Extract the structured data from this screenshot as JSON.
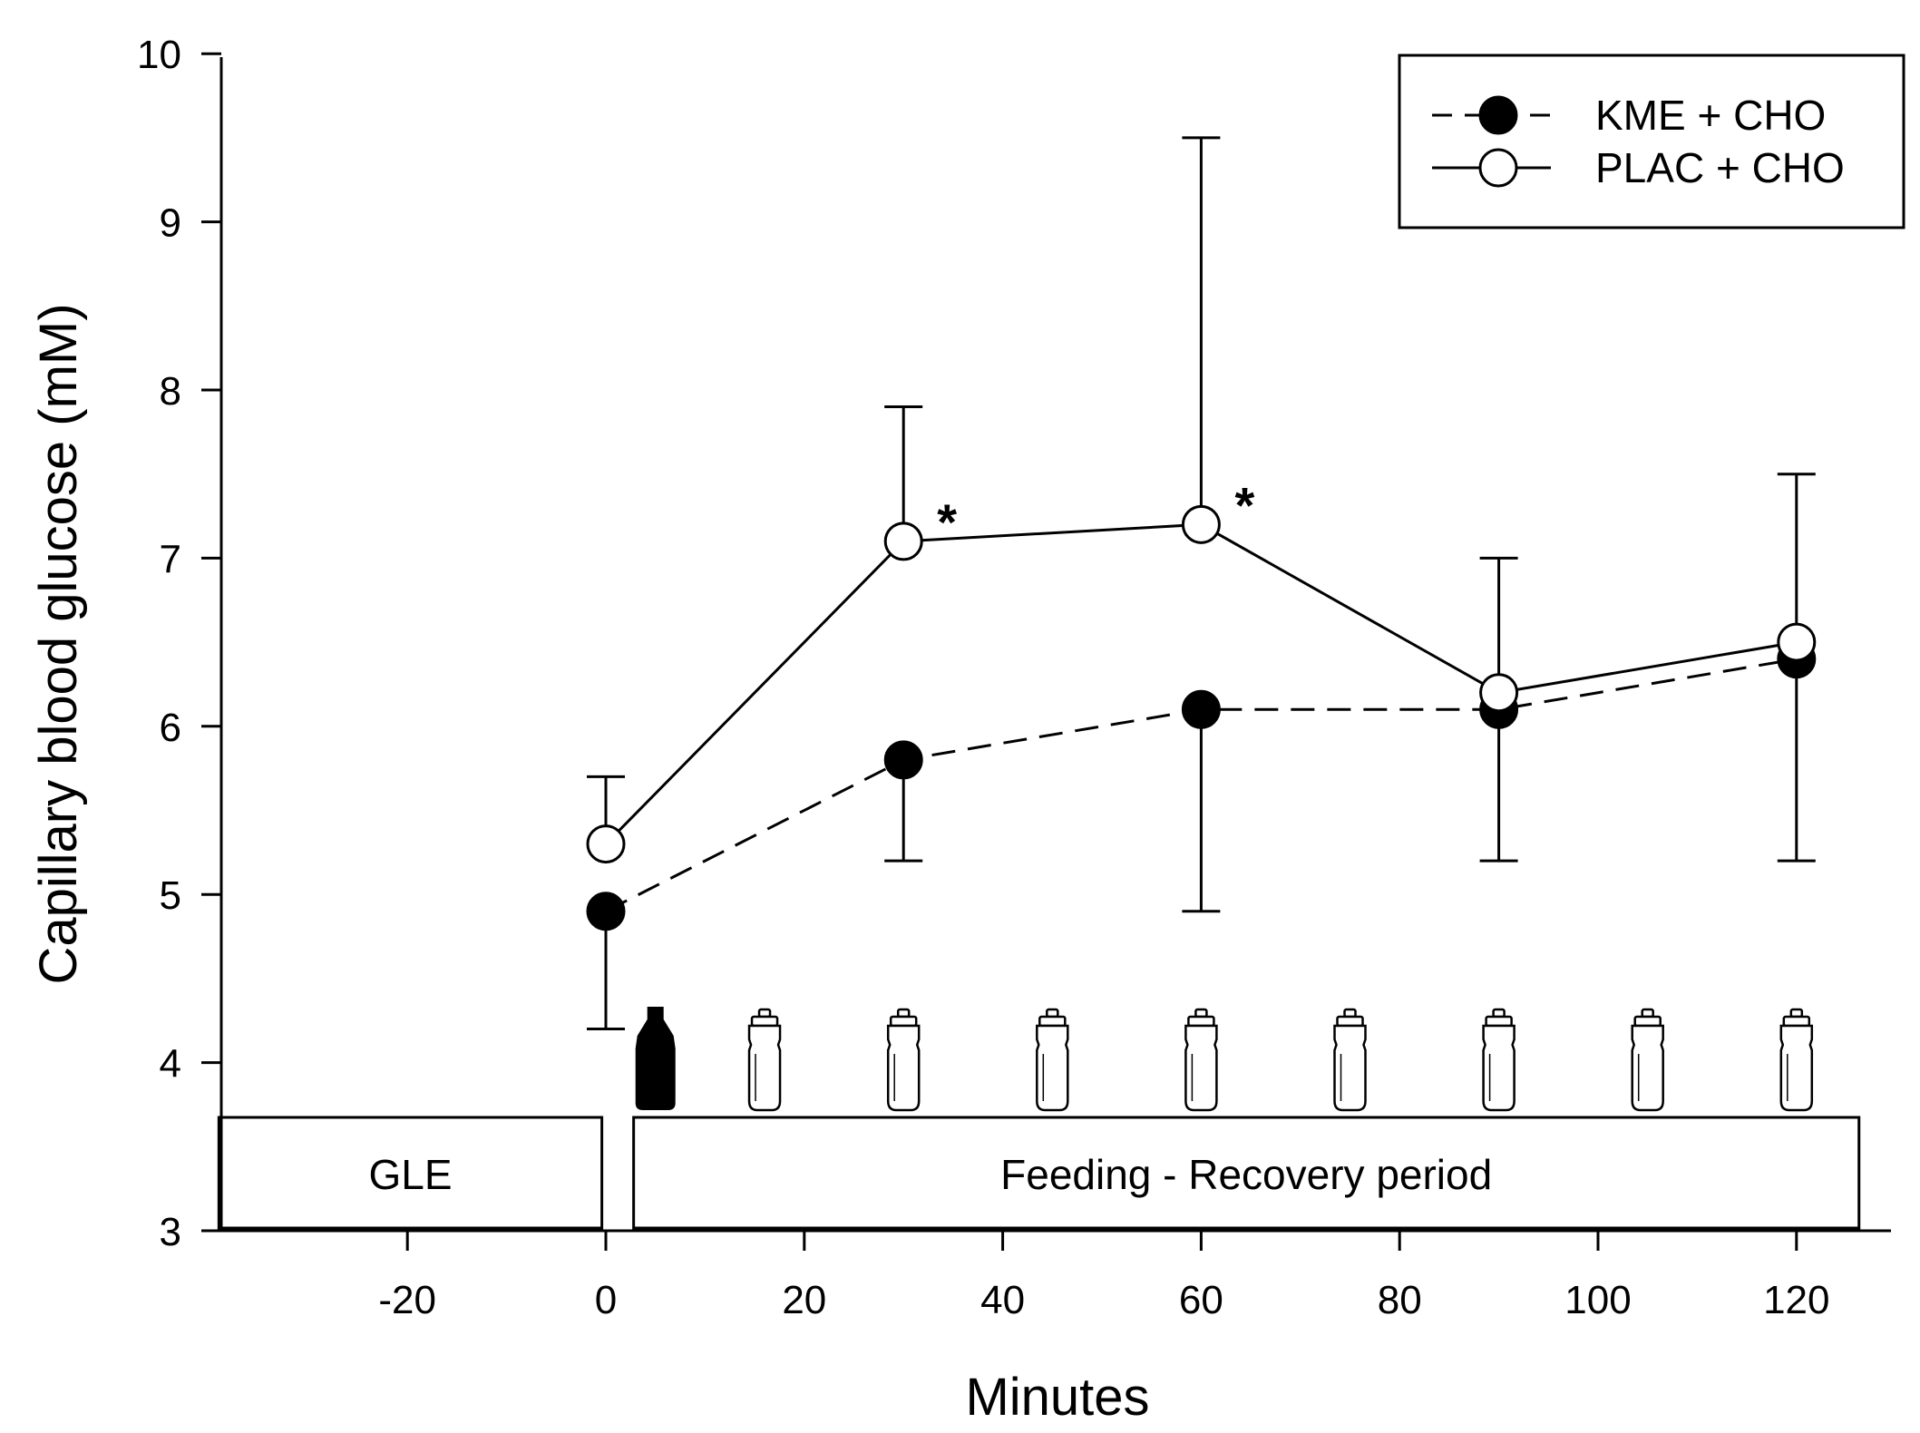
{
  "chart_data": {
    "type": "line",
    "xlabel": "Minutes",
    "ylabel": "Capillary blood glucose (mM)",
    "xlim": [
      -40,
      130
    ],
    "ylim": [
      3,
      10
    ],
    "xticks": [
      -20,
      0,
      20,
      40,
      60,
      80,
      100,
      120
    ],
    "yticks": [
      3,
      4,
      5,
      6,
      7,
      8,
      9,
      10
    ],
    "grid": false,
    "legend": "top-right",
    "series": [
      {
        "name": "KME + CHO",
        "marker": "filled-circle",
        "line_style": "dashed",
        "x": [
          0,
          30,
          60,
          90,
          120
        ],
        "y": [
          4.9,
          5.8,
          6.1,
          6.1,
          6.4
        ],
        "error_lower": [
          4.2,
          5.2,
          4.9,
          5.2,
          5.2
        ],
        "error_upper": [
          null,
          null,
          null,
          null,
          null
        ]
      },
      {
        "name": "PLAC + CHO",
        "marker": "open-circle",
        "line_style": "solid",
        "x": [
          0,
          30,
          60,
          90,
          120
        ],
        "y": [
          5.3,
          7.1,
          7.2,
          6.2,
          6.5
        ],
        "error_lower": [
          null,
          null,
          null,
          null,
          null
        ],
        "error_upper": [
          5.7,
          7.9,
          9.5,
          7.0,
          7.5
        ]
      }
    ],
    "annotations": [
      {
        "text": "*",
        "x": 30,
        "y": 7.1
      },
      {
        "text": "*",
        "x": 60,
        "y": 7.2
      }
    ],
    "phases": [
      {
        "label": "GLE",
        "x_start": -39,
        "x_end": -0.4
      },
      {
        "label": "Feeding - Recovery period",
        "x_start": 2.8,
        "x_end": 126.3
      }
    ],
    "bottles": [
      {
        "x": 5,
        "filled": true
      },
      {
        "x": 16,
        "filled": false
      },
      {
        "x": 30,
        "filled": false
      },
      {
        "x": 45,
        "filled": false
      },
      {
        "x": 60,
        "filled": false
      },
      {
        "x": 75,
        "filled": false
      },
      {
        "x": 90,
        "filled": false
      },
      {
        "x": 105,
        "filled": false
      },
      {
        "x": 120,
        "filled": false
      }
    ]
  }
}
